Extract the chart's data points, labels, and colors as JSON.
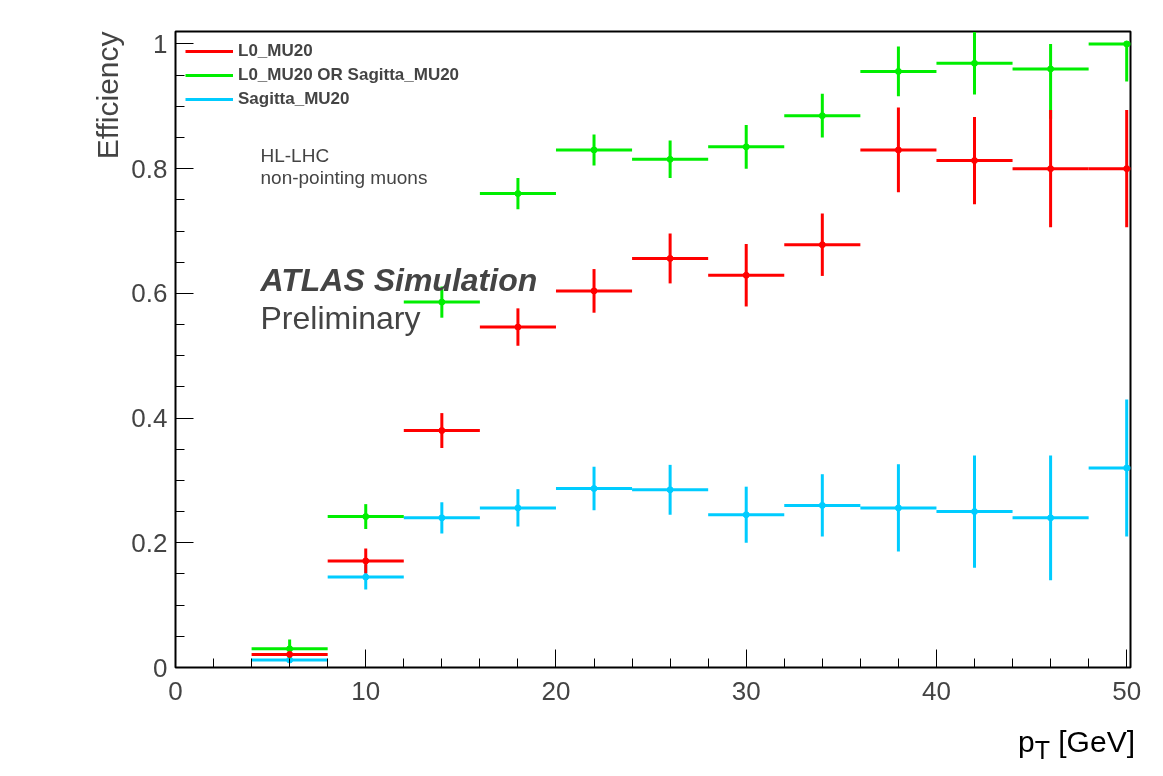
{
  "chart_data": {
    "type": "scatter",
    "xlabel": "p$_{T}$ [GeV]",
    "ylabel": "Efficiency",
    "x": [
      6,
      10,
      14,
      18,
      22,
      26,
      30,
      34,
      38,
      42,
      46,
      50
    ],
    "xlim": [
      0,
      50.2
    ],
    "xticks": [
      0,
      10,
      20,
      30,
      40,
      50
    ],
    "ylim": [
      0,
      1.02
    ],
    "yticks": [
      0,
      0.2,
      0.4,
      0.6,
      0.8,
      1
    ],
    "grid": false,
    "legend": "top left",
    "series": [
      {
        "name": "L0_MU20",
        "color": "#ff0000",
        "values": [
          0.021,
          0.171,
          0.38,
          0.546,
          0.604,
          0.656,
          0.629,
          0.678,
          0.83,
          0.813,
          0.8,
          0.8
        ],
        "errors": [
          null,
          0.02,
          0.028,
          0.03,
          0.035,
          0.04,
          0.05,
          0.05,
          0.068,
          0.07,
          0.094,
          0.094
        ],
        "xerrors": [
          2,
          2,
          2,
          2,
          2,
          2,
          2,
          2,
          2,
          2,
          2,
          2
        ]
      },
      {
        "name": "L0_MU20 OR Sagitta_MU20",
        "color": "#00ee00",
        "values": [
          0.03,
          0.242,
          0.586,
          0.76,
          0.83,
          0.815,
          0.835,
          0.885,
          0.956,
          0.969,
          0.96,
          1.0
        ],
        "errors": [
          0.015,
          0.02,
          0.025,
          0.025,
          0.025,
          0.03,
          0.035,
          0.035,
          0.04,
          0.05,
          [
            0.88,
            1.0
          ],
          [
            0.94,
            1.0
          ]
        ],
        "xerrors": [
          2,
          2,
          2,
          2,
          2,
          2,
          2,
          2,
          2,
          2,
          2,
          2
        ]
      },
      {
        "name": "Sagitta_MU20",
        "color": "#00ccff",
        "values": [
          0.012,
          0.145,
          0.24,
          0.256,
          0.287,
          0.285,
          0.245,
          0.26,
          0.256,
          0.25,
          0.24,
          0.32
        ],
        "errors": [
          null,
          0.02,
          0.025,
          0.03,
          0.035,
          0.04,
          0.045,
          0.05,
          0.07,
          0.09,
          0.1,
          0.11
        ],
        "xerrors": [
          2,
          2,
          2,
          2,
          2,
          2,
          2,
          2,
          2,
          2,
          2,
          2
        ]
      }
    ],
    "annotations": [
      "HL-LHC",
      "non-pointing muons",
      "ATLAS Simulation",
      "Preliminary"
    ]
  }
}
